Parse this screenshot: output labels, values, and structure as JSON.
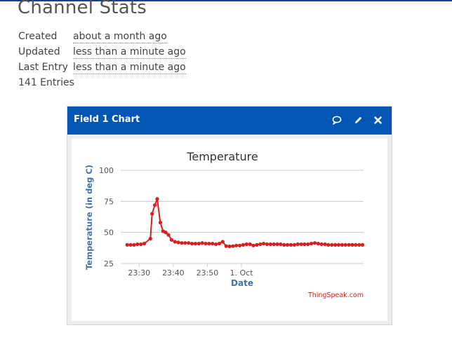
{
  "page": {
    "title": "Channel Stats"
  },
  "stats": [
    {
      "key": "Created",
      "value": "about a month ago"
    },
    {
      "key": "Updated",
      "value": "less than a minute ago"
    },
    {
      "key": "Last Entry",
      "value": "less than a minute ago"
    }
  ],
  "entries_text": "141 Entries",
  "widget": {
    "title": "Field 1 Chart",
    "icons": [
      "comment-icon",
      "pencil-icon",
      "close-icon"
    ]
  },
  "credit": "ThingSpeak.com",
  "colors": {
    "header": "#0257b4",
    "series": "#d62020",
    "axis_label": "#4572a7"
  },
  "chart_data": {
    "type": "line",
    "title": "Temperature",
    "xlabel": "Date",
    "ylabel": "Temperature (in deg C)",
    "ylim": [
      25,
      100
    ],
    "yticks": [
      25,
      50,
      75,
      100
    ],
    "xticks": [
      "23:30",
      "23:40",
      "23:50",
      "1. Oct"
    ],
    "grid": true,
    "legend": "none",
    "x_minutes": [
      26.5,
      27.5,
      28.5,
      29.5,
      30.5,
      31.5,
      33.3,
      33.8,
      34.6,
      35.3,
      36.2,
      37.0,
      37.8,
      38.6,
      39.5,
      40.5,
      41.5,
      42.5,
      43.5,
      44.5,
      45.5,
      46.5,
      47.5,
      48.5,
      49.5,
      50.5,
      51.5,
      52.5,
      53.5,
      54.5,
      55.5,
      56.5,
      57.5,
      58.5,
      59.5,
      60.5,
      61.5,
      62.5,
      63.5,
      64.5,
      65.5,
      66.5,
      67.5,
      68.5,
      69.5,
      70.5,
      71.5,
      72.5,
      73.5,
      74.5,
      75.5,
      76.5,
      77.5,
      78.5,
      79.5,
      80.5,
      81.5,
      82.5,
      83.5,
      84.5,
      85.5,
      86.5,
      87.5,
      88.5,
      89.5,
      90.5,
      91.5,
      92.5,
      93.5,
      94.5,
      95.5
    ],
    "values": [
      40,
      40,
      40,
      40.5,
      40.5,
      41,
      45,
      65,
      72,
      77,
      58,
      51,
      50,
      48,
      44,
      42.5,
      42,
      41.5,
      41.5,
      41.5,
      41,
      41,
      41,
      41.5,
      41,
      41,
      41,
      40.5,
      41,
      42.5,
      39,
      38.8,
      39,
      39.5,
      39.5,
      40,
      40.5,
      40.5,
      39.5,
      40,
      40.5,
      41,
      40.5,
      40.5,
      40.5,
      40.5,
      40.5,
      40,
      40,
      40,
      40,
      40.5,
      40.5,
      40.5,
      40.5,
      41,
      41.5,
      41,
      40.5,
      40.5,
      40,
      40,
      40,
      40,
      40,
      40,
      40,
      40,
      40,
      40,
      40
    ]
  }
}
